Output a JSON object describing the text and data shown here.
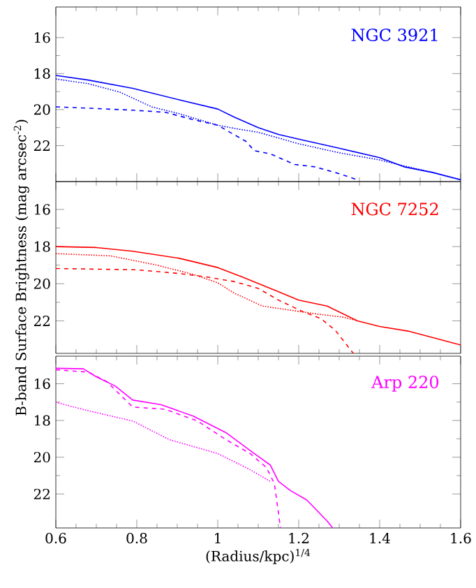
{
  "chart_data": [
    {
      "type": "line",
      "title": "NGC 3921",
      "xlim": [
        0.6,
        1.6
      ],
      "ylim": [
        24,
        14.3
      ],
      "xticks": [
        0.6,
        0.8,
        1,
        1.2,
        1.4,
        1.6
      ],
      "yticks": [
        16,
        18,
        20,
        22
      ],
      "tick_labels": "y",
      "grid": false,
      "marker": "none",
      "series": [
        {
          "color": "#0000ff",
          "line_style": "solid",
          "x": [
            0.6,
            0.68,
            0.79,
            0.905,
            1.0,
            1.04,
            1.1,
            1.15,
            1.2,
            1.3,
            1.4,
            1.46,
            1.53,
            1.6
          ],
          "values": [
            18.1,
            18.36,
            18.82,
            19.46,
            19.97,
            20.41,
            21.0,
            21.38,
            21.64,
            22.15,
            22.67,
            23.18,
            23.49,
            23.9
          ]
        },
        {
          "color": "#0000ff",
          "line_style": "dotted",
          "x": [
            0.6,
            0.68,
            0.758,
            0.837,
            0.905,
            1.0,
            1.05,
            1.1,
            1.2,
            1.3,
            1.4,
            1.47,
            1.53,
            1.6
          ],
          "values": [
            18.3,
            18.56,
            19.03,
            19.85,
            20.23,
            20.87,
            21.08,
            21.26,
            21.9,
            22.4,
            22.8,
            23.18,
            23.49,
            23.9
          ]
        },
        {
          "color": "#0000ff",
          "line_style": "dashed",
          "x": [
            0.6,
            0.79,
            0.87,
            0.94,
            1.0,
            1.03,
            1.07,
            1.09,
            1.13,
            1.19,
            1.24,
            1.3,
            1.345
          ],
          "values": [
            19.85,
            20.03,
            20.15,
            20.56,
            20.87,
            21.26,
            21.77,
            22.28,
            22.46,
            23.05,
            23.18,
            23.56,
            23.9
          ]
        }
      ]
    },
    {
      "type": "line",
      "title": "NGC 7252",
      "ylabel": "B-band Surface Brightness (mag arcsec$^{-2}$)",
      "xlim": [
        0.6,
        1.6
      ],
      "ylim": [
        23.75,
        14.5
      ],
      "xticks": [
        0.6,
        0.8,
        1,
        1.2,
        1.4,
        1.6
      ],
      "yticks": [
        16,
        18,
        20,
        22
      ],
      "tick_labels": "y",
      "grid": false,
      "marker": "none",
      "series": [
        {
          "color": "#ff0000",
          "line_style": "solid",
          "x": [
            0.6,
            0.7,
            0.79,
            0.905,
            1.0,
            1.06,
            1.13,
            1.2,
            1.27,
            1.345,
            1.4,
            1.47,
            1.54,
            1.6
          ],
          "values": [
            18.0,
            18.05,
            18.25,
            18.63,
            19.13,
            19.63,
            20.25,
            20.88,
            21.2,
            22.0,
            22.3,
            22.55,
            22.95,
            23.3
          ]
        },
        {
          "color": "#ff0000",
          "line_style": "dotted",
          "x": [
            0.6,
            0.735,
            0.85,
            0.94,
            1.0,
            1.04,
            1.11,
            1.165,
            1.245,
            1.31,
            1.345
          ],
          "values": [
            18.38,
            18.5,
            19.0,
            19.5,
            19.95,
            20.5,
            21.2,
            21.38,
            21.63,
            21.8,
            22.0
          ]
        },
        {
          "color": "#ff0000",
          "line_style": "dashed",
          "x": [
            0.6,
            0.8,
            0.905,
            0.97,
            1.04,
            1.1,
            1.15,
            1.21,
            1.255,
            1.29,
            1.335
          ],
          "values": [
            19.18,
            19.25,
            19.45,
            19.63,
            19.88,
            20.25,
            20.88,
            21.5,
            21.88,
            22.5,
            23.75
          ]
        }
      ]
    },
    {
      "type": "line",
      "title": "Arp 220",
      "xlabel": "(Radius/kpc)$^{1/4}$",
      "xlim": [
        0.6,
        1.6
      ],
      "ylim": [
        23.85,
        14.5
      ],
      "xticks": [
        0.6,
        0.8,
        1,
        1.2,
        1.4,
        1.6
      ],
      "yticks": [
        16,
        18,
        20,
        22
      ],
      "grid": false,
      "marker": "none",
      "series": [
        {
          "color": "#ff00ff",
          "line_style": "solid",
          "x": [
            0.6,
            0.668,
            0.7,
            0.747,
            0.79,
            0.86,
            0.94,
            1.02,
            1.09,
            1.13,
            1.15,
            1.18,
            1.22,
            1.27,
            1.284
          ],
          "values": [
            15.16,
            15.19,
            15.62,
            16.13,
            16.89,
            17.14,
            17.77,
            18.66,
            19.8,
            20.43,
            21.32,
            21.82,
            22.33,
            23.47,
            23.85
          ]
        },
        {
          "color": "#ff00ff",
          "line_style": "dashed",
          "x": [
            0.6,
            0.68,
            0.725,
            0.79,
            0.87,
            0.95,
            1.02,
            1.08,
            1.12,
            1.14,
            1.155
          ],
          "values": [
            15.24,
            15.37,
            15.87,
            17.27,
            17.39,
            18.03,
            19.04,
            19.8,
            20.56,
            21.44,
            23.85
          ]
        },
        {
          "color": "#ff00ff",
          "line_style": "dotted",
          "x": [
            0.6,
            0.68,
            0.79,
            0.88,
            1.0,
            1.08,
            1.13
          ],
          "values": [
            17.01,
            17.47,
            18.03,
            19.04,
            19.8,
            20.68,
            21.32
          ]
        }
      ]
    }
  ]
}
